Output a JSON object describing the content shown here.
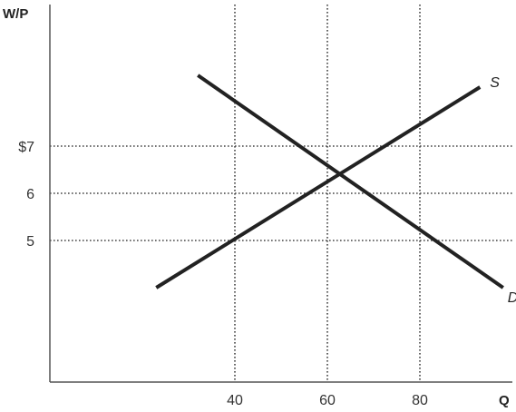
{
  "chart_data": {
    "type": "line",
    "title": "",
    "xlabel": "Q",
    "ylabel": "W/P",
    "xlim": [
      0,
      100
    ],
    "ylim": [
      2,
      10
    ],
    "grid": false,
    "x_ticks": [
      {
        "value": 40,
        "label": "40"
      },
      {
        "value": 60,
        "label": "60"
      },
      {
        "value": 80,
        "label": "80"
      }
    ],
    "y_ticks": [
      {
        "value": 7,
        "label": "$7"
      },
      {
        "value": 6,
        "label": "6"
      },
      {
        "value": 5,
        "label": "5"
      }
    ],
    "series": [
      {
        "name": "S",
        "color": "#222222",
        "x": [
          23,
          93
        ],
        "y": [
          4,
          8.25
        ]
      },
      {
        "name": "D",
        "color": "#222222",
        "x": [
          32,
          98
        ],
        "y": [
          8.5,
          4
        ]
      }
    ]
  }
}
